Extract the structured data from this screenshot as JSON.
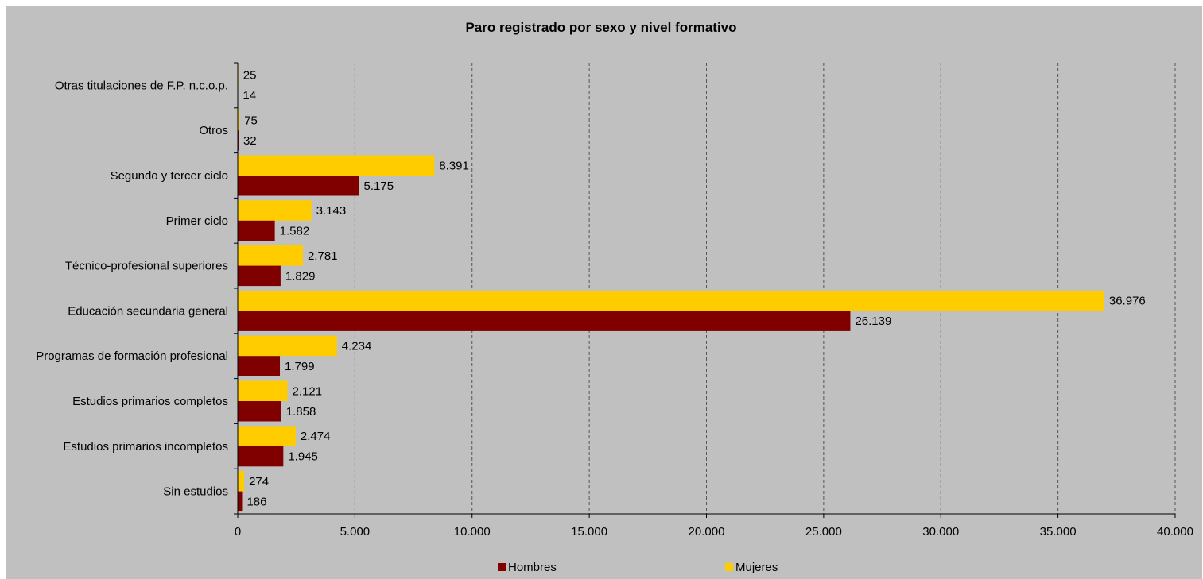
{
  "chart_data": {
    "type": "bar",
    "orientation": "horizontal",
    "title": "Paro registrado por sexo y nivel formativo",
    "xlabel": "",
    "ylabel": "",
    "xlim": [
      0,
      40000
    ],
    "x_ticks": [
      0,
      5000,
      10000,
      15000,
      20000,
      25000,
      30000,
      35000,
      40000
    ],
    "x_tick_labels": [
      "0",
      "5.000",
      "10.000",
      "15.000",
      "20.000",
      "25.000",
      "30.000",
      "35.000",
      "40.000"
    ],
    "grid": true,
    "legend_position": "bottom",
    "categories": [
      "Otras titulaciones de F.P. n.c.o.p.",
      "Otros",
      "Segundo y tercer ciclo",
      "Primer ciclo",
      "Técnico-profesional superiores",
      "Educación secundaria general",
      "Programas de formación profesional",
      "Estudios primarios completos",
      "Estudios primarios incompletos",
      "Sin estudios"
    ],
    "series": [
      {
        "name": "Hombres",
        "color": "#800000",
        "values": [
          14,
          32,
          5175,
          1582,
          1829,
          26139,
          1799,
          1858,
          1945,
          186
        ],
        "labels": [
          "14",
          "32",
          "5.175",
          "1.582",
          "1.829",
          "26.139",
          "1.799",
          "1.858",
          "1.945",
          "186"
        ]
      },
      {
        "name": "Mujeres",
        "color": "#ffcc00",
        "values": [
          25,
          75,
          8391,
          3143,
          2781,
          36976,
          4234,
          2121,
          2474,
          274
        ],
        "labels": [
          "25",
          "75",
          "8.391",
          "3.143",
          "2.781",
          "36.976",
          "4.234",
          "2.121",
          "2.474",
          "274"
        ]
      }
    ]
  }
}
